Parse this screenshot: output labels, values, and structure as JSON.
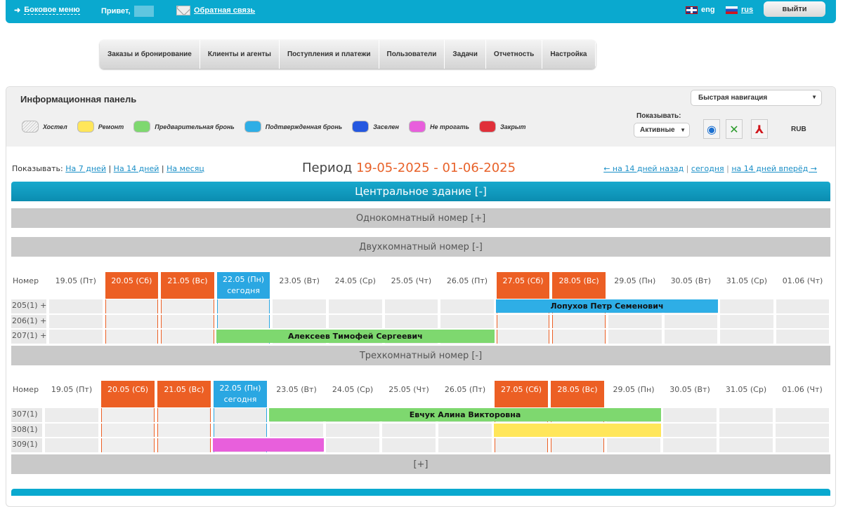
{
  "topbar": {
    "side_menu": "Боковое меню",
    "greeting": "Привет,",
    "feedback": "Обратная связь",
    "lang_en": "eng",
    "lang_ru": "rus",
    "logout": "выйти"
  },
  "nav": [
    "Заказы и бронирование",
    "Клиенты и агенты",
    "Поступления и платежи",
    "Пользователи",
    "Задачи",
    "Отчетность",
    "Настройка"
  ],
  "panel": {
    "title": "Информационная панель",
    "quick_nav": "Быстрая навигация",
    "show_label": "Показывать:",
    "show_value": "Активные",
    "currency": "RUB",
    "legend": [
      {
        "label": "Хостел",
        "color": "#e6e6e6"
      },
      {
        "label": "Ремонт",
        "color": "#ffe65a"
      },
      {
        "label": "Предварительная бронь",
        "color": "#7ed86f"
      },
      {
        "label": "Подтвержденная бронь",
        "color": "#2eaee6"
      },
      {
        "label": "Заселен",
        "color": "#2457e0"
      },
      {
        "label": "Не трогать",
        "color": "#e85fdc"
      },
      {
        "label": "Закрыт",
        "color": "#e0303a"
      }
    ]
  },
  "period": {
    "show_prefix": "Показывать:",
    "links": [
      "На 7 дней",
      "На 14 дней",
      "На месяц"
    ],
    "label": "Период",
    "range": "19-05-2025 - 01-06-2025",
    "back": "← на 14 дней назад",
    "today": "сегодня",
    "forward": "на 14 дней вперёд →"
  },
  "building": "Центральное здание [-]",
  "room_types": {
    "single": "Однокомнатный номер [+]",
    "double": "Двухкомнатный номер [-]",
    "triple": "Трехкомнатный номер [-]",
    "more": "[+]"
  },
  "grid": {
    "room_header": "Номер",
    "today_label": "сегодня",
    "days": [
      {
        "d": "19.05 (Пт)",
        "t": ""
      },
      {
        "d": "20.05 (Сб)",
        "t": "we"
      },
      {
        "d": "21.05 (Вс)",
        "t": "we"
      },
      {
        "d": "22.05 (Пн)",
        "t": "today"
      },
      {
        "d": "23.05 (Вт)",
        "t": ""
      },
      {
        "d": "24.05 (Ср)",
        "t": ""
      },
      {
        "d": "25.05 (Чт)",
        "t": ""
      },
      {
        "d": "26.05 (Пт)",
        "t": ""
      },
      {
        "d": "27.05 (Сб)",
        "t": "we"
      },
      {
        "d": "28.05 (Вс)",
        "t": "we"
      },
      {
        "d": "29.05 (Пн)",
        "t": ""
      },
      {
        "d": "30.05 (Вт)",
        "t": ""
      },
      {
        "d": "31.05 (Ср)",
        "t": ""
      },
      {
        "d": "01.06 (Чт)",
        "t": ""
      }
    ],
    "sections": [
      {
        "rooms": [
          "205(1) +",
          "206(1) +",
          "207(1) +"
        ],
        "bookings": [
          {
            "room": 0,
            "from": "27.05",
            "to": "30.05",
            "name": "Лопухов Петр Семенович",
            "status": "Подтвержденная бронь",
            "color": "#2eaee6"
          },
          {
            "room": 2,
            "from": "22.05",
            "to": "26.05",
            "name": "Алексеев Тимофей Сергеевич",
            "status": "Предварительная бронь",
            "color": "#7ed86f"
          }
        ]
      },
      {
        "rooms": [
          "307(1)",
          "308(1)",
          "309(1)"
        ],
        "bookings": [
          {
            "room": 0,
            "from": "23.05",
            "to": "29.05",
            "name": "Евчук Алина Викторовна",
            "status": "Предварительная бронь",
            "color": "#7ed86f"
          },
          {
            "room": 1,
            "from": "27.05",
            "to": "29.05",
            "name": "",
            "status": "Ремонт",
            "color": "#ffe65a"
          },
          {
            "room": 2,
            "from": "22.05",
            "to": "23.05",
            "name": "",
            "status": "Не трогать",
            "color": "#e85fdc"
          }
        ]
      }
    ]
  }
}
